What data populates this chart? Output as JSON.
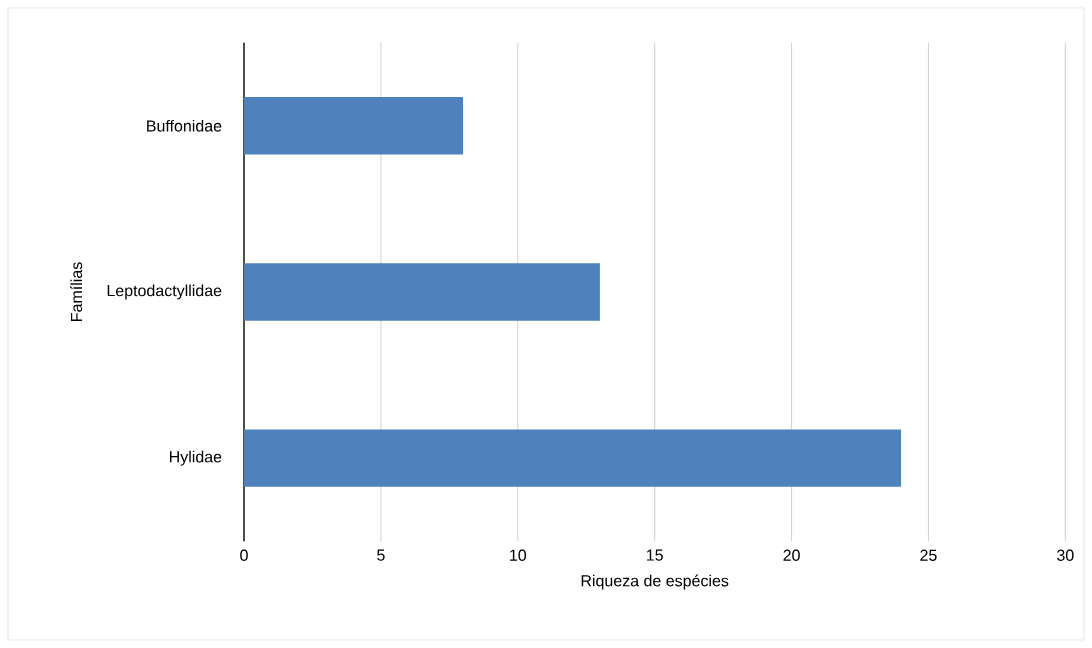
{
  "chart_data": {
    "type": "bar",
    "orientation": "horizontal",
    "categories": [
      "Buffonidae",
      "Leptodactyllidae",
      "Hylidae"
    ],
    "values": [
      8,
      13,
      24
    ],
    "color": "#4f81bd",
    "xlim": [
      0,
      30
    ],
    "xticks": [
      0,
      5,
      10,
      15,
      20,
      25,
      30
    ],
    "xlabel": "Riqueza de espécies",
    "ylabel": "Famílias",
    "grid": "x"
  }
}
